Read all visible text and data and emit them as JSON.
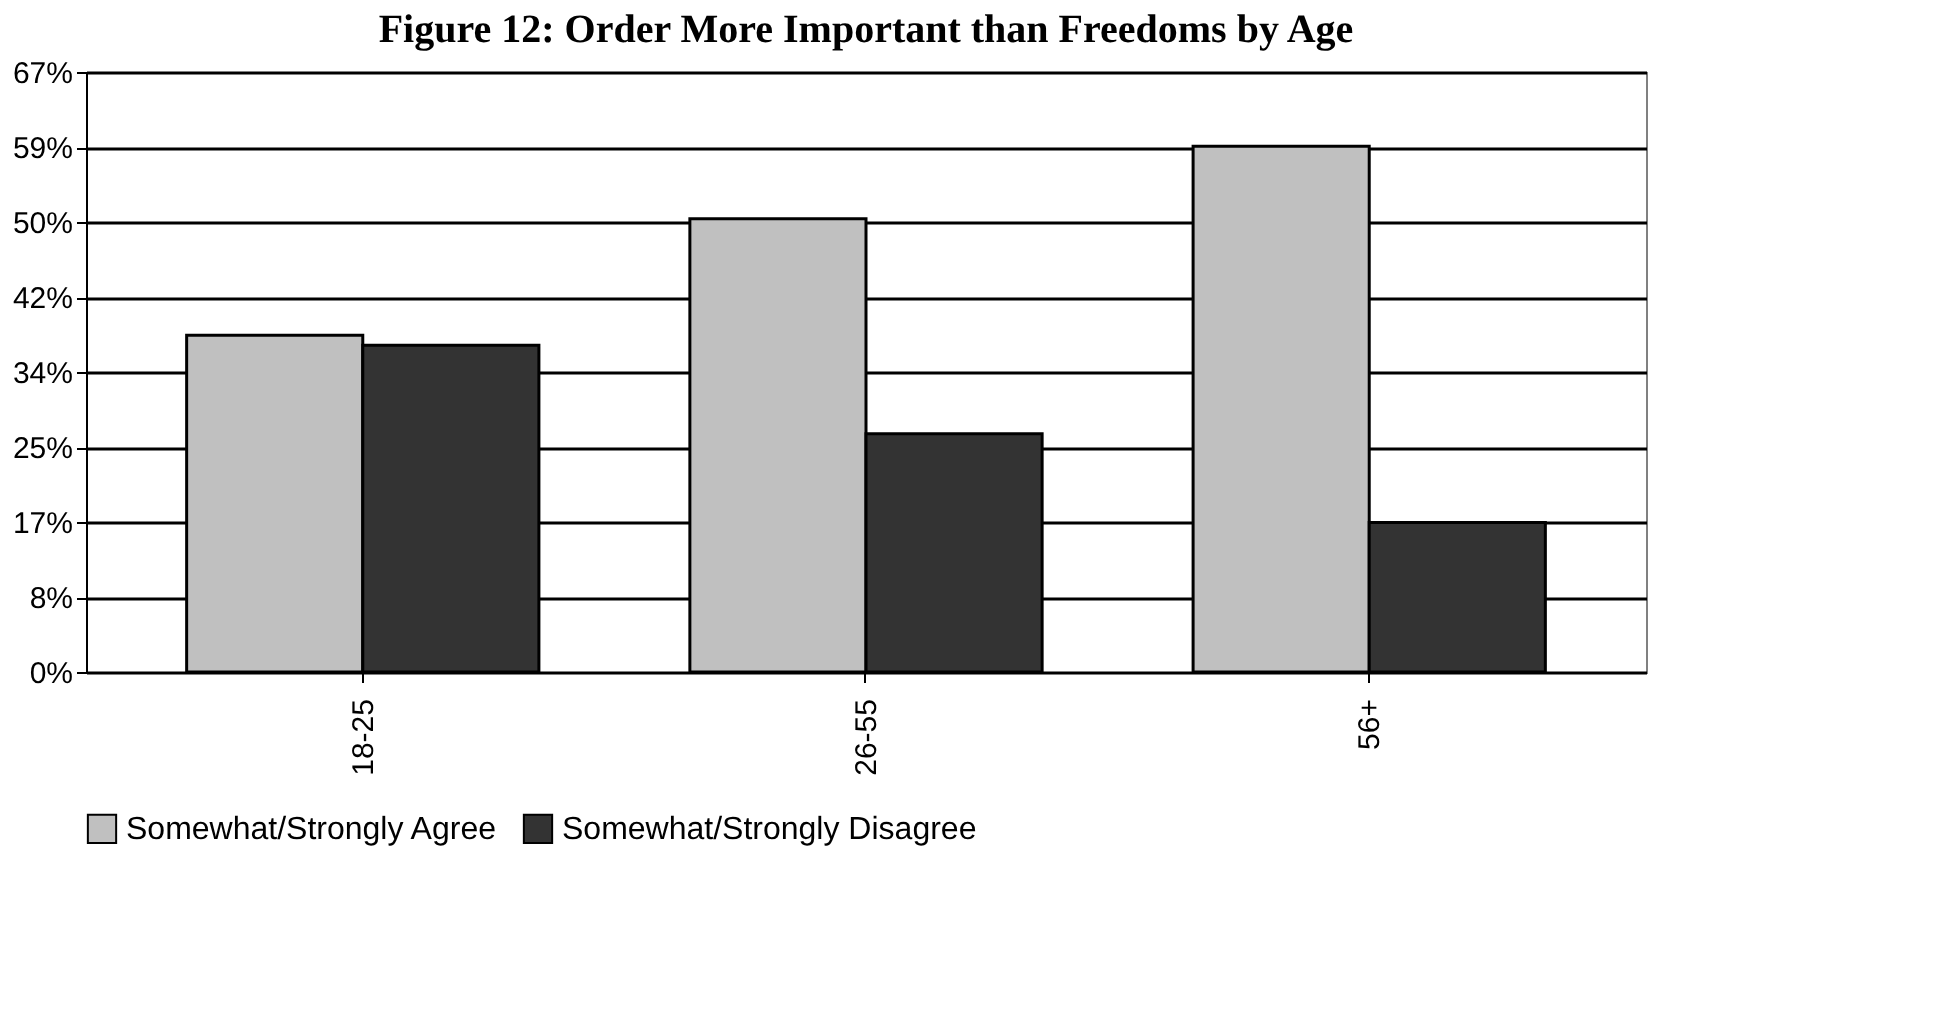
{
  "chart_data": {
    "type": "bar",
    "title": "Figure 12: Order More Important than Freedoms by Age",
    "categories": [
      "18-25",
      "26-55",
      "56+"
    ],
    "series": [
      {
        "name": "Somewhat/Strongly Agree",
        "color": "#c0c0c0",
        "values": [
          37.6,
          50.6,
          58.7
        ]
      },
      {
        "name": "Somewhat/Strongly Disagree",
        "color": "#333333",
        "values": [
          36.5,
          26.6,
          16.7
        ]
      }
    ],
    "ylim": [
      0,
      67
    ],
    "yticks": [
      {
        "value": 0,
        "label": "0%"
      },
      {
        "value": 8.375,
        "label": "8%"
      },
      {
        "value": 16.75,
        "label": "17%"
      },
      {
        "value": 25.125,
        "label": "25%"
      },
      {
        "value": 33.5,
        "label": "34%"
      },
      {
        "value": 41.875,
        "label": "42%"
      },
      {
        "value": 50.25,
        "label": "50%"
      },
      {
        "value": 58.625,
        "label": "59%"
      },
      {
        "value": 67,
        "label": "67%"
      }
    ],
    "grid": "y",
    "legend": "bottom"
  }
}
